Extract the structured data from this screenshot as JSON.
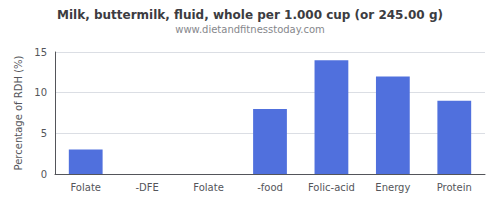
{
  "chart_data": {
    "type": "bar",
    "title": "Milk, buttermilk, fluid, whole per 1.000 cup (or 245.00 g)",
    "subtitle": "www.dietandfitnesstoday.com",
    "categories": [
      "Folate",
      "-DFE",
      "Folate",
      "-food",
      "Folic-acid",
      "Energy",
      "Protein"
    ],
    "values": [
      3.0,
      0.0,
      0.0,
      8.0,
      14.0,
      12.0,
      9.0
    ],
    "ylabel": "Percentage of RDH (%)",
    "ylim": [
      0,
      15
    ],
    "yticks": [
      0,
      5,
      10,
      15
    ],
    "grid": true
  }
}
